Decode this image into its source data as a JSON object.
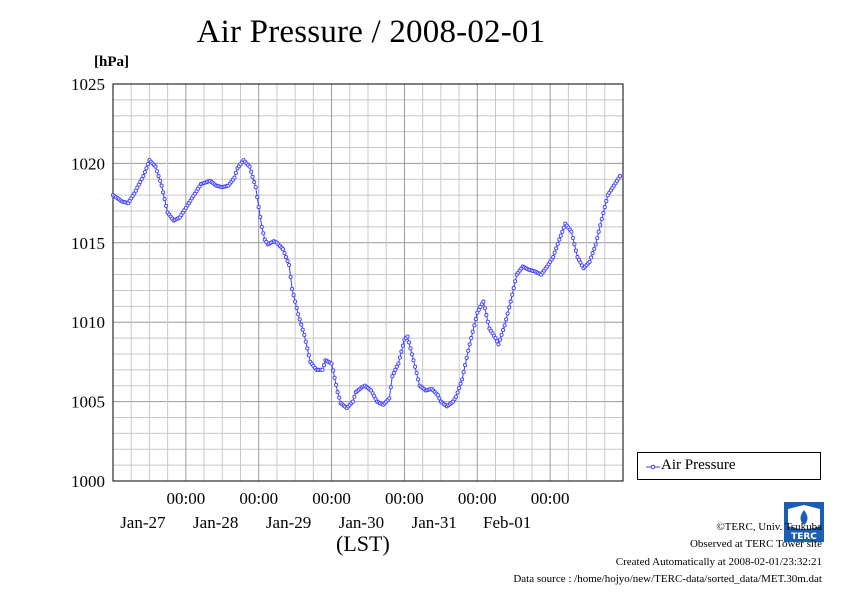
{
  "chart_data": {
    "type": "line",
    "title": "Air Pressure / 2008-02-01",
    "ylabel": "[hPa]",
    "xlabel": "(LST)",
    "ylim": [
      1000,
      1025
    ],
    "yticks": [
      "1000",
      "1005",
      "1010",
      "1015",
      "1020",
      "1025"
    ],
    "xlim": [
      "2008-01-26 00:00",
      "2008-02-01 24:00"
    ],
    "xticks": [
      {
        "time": "00:00",
        "date": "Jan-27"
      },
      {
        "time": "00:00",
        "date": "Jan-28"
      },
      {
        "time": "00:00",
        "date": "Jan-29"
      },
      {
        "time": "00:00",
        "date": "Jan-30"
      },
      {
        "time": "00:00",
        "date": "Jan-31"
      },
      {
        "time": "00:00",
        "date": "Feb-01"
      }
    ],
    "grid": true,
    "legend": "right",
    "series": [
      {
        "name": "Air Pressure",
        "color": "#4040ff",
        "x": [
          "01-26 00:00",
          "01-26 03:00",
          "01-26 05:00",
          "01-26 07:00",
          "01-26 10:00",
          "01-26 12:00",
          "01-26 14:00",
          "01-26 16:00",
          "01-26 18:00",
          "01-26 20:00",
          "01-26 22:00",
          "01-27 02:00",
          "01-27 05:00",
          "01-27 08:00",
          "01-27 10:00",
          "01-27 12:00",
          "01-27 14:00",
          "01-27 16:00",
          "01-27 17:00",
          "01-27 19:00",
          "01-27 21:00",
          "01-27 23:00",
          "01-28 01:00",
          "01-28 02:00",
          "01-28 03:00",
          "01-28 05:00",
          "01-28 06:00",
          "01-28 08:00",
          "01-28 10:00",
          "01-28 11:00",
          "01-28 13:00",
          "01-28 15:00",
          "01-28 17:00",
          "01-28 19:00",
          "01-28 21:00",
          "01-28 22:00",
          "01-29 00:00",
          "01-29 02:00",
          "01-29 03:00",
          "01-29 05:00",
          "01-29 07:00",
          "01-29 08:00",
          "01-29 10:00",
          "01-29 11:00",
          "01-29 13:00",
          "01-29 15:00",
          "01-29 17:00",
          "01-29 19:00",
          "01-29 20:00",
          "01-29 22:00",
          "01-30 00:00",
          "01-30 01:00",
          "01-30 03:00",
          "01-30 05:00",
          "01-30 07:00",
          "01-30 09:00",
          "01-30 11:00",
          "01-30 12:00",
          "01-30 14:00",
          "01-30 16:00",
          "01-30 17:00",
          "01-30 19:00",
          "01-30 21:00",
          "01-31 00:00",
          "01-31 02:00",
          "01-31 04:00",
          "01-31 06:00",
          "01-31 07:00",
          "01-31 09:00",
          "01-31 11:00",
          "01-31 13:00",
          "01-31 15:00",
          "01-31 17:00",
          "01-31 19:00",
          "01-31 21:00",
          "01-31 23:00",
          "02-01 01:00",
          "02-01 03:00",
          "02-01 05:00",
          "02-01 07:00",
          "02-01 09:00",
          "02-01 11:00",
          "02-01 13:00",
          "02-01 15:00",
          "02-01 17:00",
          "02-01 19:00",
          "02-01 21:00",
          "02-01 23:00"
        ],
        "values": [
          1018.0,
          1017.6,
          1017.5,
          1018.1,
          1019.2,
          1020.2,
          1019.8,
          1018.6,
          1016.9,
          1016.4,
          1016.6,
          1017.8,
          1018.7,
          1018.9,
          1018.6,
          1018.5,
          1018.6,
          1019.1,
          1019.7,
          1020.2,
          1019.8,
          1018.5,
          1016.0,
          1015.2,
          1014.9,
          1015.1,
          1015.0,
          1014.6,
          1013.6,
          1012.1,
          1010.5,
          1009.2,
          1007.5,
          1007.0,
          1007.0,
          1007.6,
          1007.4,
          1005.6,
          1004.9,
          1004.6,
          1005.0,
          1005.6,
          1005.9,
          1006.0,
          1005.7,
          1005.0,
          1004.8,
          1005.2,
          1006.6,
          1007.4,
          1008.9,
          1009.1,
          1007.6,
          1006.0,
          1005.7,
          1005.8,
          1005.4,
          1005.0,
          1004.7,
          1005.0,
          1005.3,
          1006.4,
          1008.2,
          1010.6,
          1011.3,
          1009.6,
          1009.0,
          1008.6,
          1009.8,
          1011.3,
          1013.0,
          1013.5,
          1013.3,
          1013.2,
          1013.0,
          1013.5,
          1014.1,
          1015.2,
          1016.2,
          1015.7,
          1014.1,
          1013.4,
          1013.8,
          1014.9,
          1016.5,
          1018.0,
          1018.6,
          1019.2
        ]
      }
    ]
  },
  "footer": {
    "credit_1": "©TERC, Univ. Tsukuba",
    "credit_2": "Observed at TERC Tower site",
    "credit_3": "Created Automatically at 2008-02-01/23:32:21",
    "credit_4": "Data source : /home/hojyo/new/TERC-data/sorted_data/MET.30m.dat",
    "logo_text": "TERC"
  }
}
